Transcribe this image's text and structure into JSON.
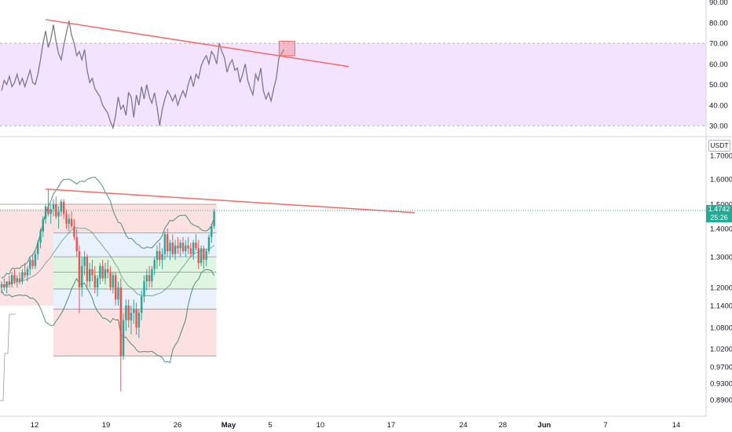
{
  "chart_data": [
    {
      "type": "line",
      "panel": "rsi",
      "ylim": [
        27,
        91
      ],
      "y_ticks": [
        "90.00",
        "80.00",
        "70.00",
        "60.00",
        "50.00",
        "40.00",
        "30.00"
      ],
      "y_tick_values": [
        90,
        80,
        70,
        60,
        50,
        40,
        30
      ],
      "band": {
        "upper": 70,
        "lower": 30
      },
      "values": [
        47,
        52,
        50,
        54,
        49,
        51,
        55,
        50,
        53,
        49,
        53,
        57,
        51,
        50,
        55,
        62,
        70,
        76,
        68,
        72,
        79,
        71,
        65,
        62,
        69,
        75,
        81,
        74,
        70,
        64,
        66,
        62,
        67,
        57,
        51,
        53,
        48,
        46,
        44,
        40,
        38,
        36,
        32,
        29,
        35,
        44,
        38,
        40,
        35,
        46,
        44,
        34,
        45,
        40,
        49,
        43,
        50,
        44,
        41,
        46,
        39,
        30,
        38,
        43,
        47,
        45,
        42,
        45,
        40,
        44,
        47,
        44,
        50,
        54,
        49,
        55,
        53,
        59,
        62,
        64,
        60,
        66,
        64,
        60,
        70,
        66,
        63,
        56,
        60,
        62,
        57,
        58,
        51,
        55,
        60,
        52,
        48,
        45,
        55,
        52,
        58,
        47,
        43,
        46,
        42,
        48,
        53,
        63,
        65,
        67
      ],
      "color_line": "#787b86",
      "color_band_fill": "#f3e3ff",
      "trendline": {
        "start": [
          17,
          81.5
        ],
        "end": [
          114,
          61
        ],
        "color": "#f26a68"
      },
      "highlight_box": {
        "x": 108,
        "y_low": 64,
        "y_high": 71
      }
    },
    {
      "type": "candlestick",
      "panel": "price",
      "quote_label": "USDT",
      "ylim": [
        0.877,
        1.8
      ],
      "y_ticks": [
        "1.7000",
        "1.6000",
        "1.5000",
        "1.4000",
        "1.3000",
        "1.2000",
        "1.1400",
        "1.0800",
        "1.0200",
        "0.9700",
        "0.9300",
        "0.8900"
      ],
      "y_tick_values": [
        1.7,
        1.6,
        1.5,
        1.4,
        1.3,
        1.2,
        1.14,
        1.08,
        1.02,
        0.97,
        0.93,
        0.89
      ],
      "x_ticks": [
        "12",
        "19",
        "26",
        "May",
        "5",
        "10",
        "17",
        "24",
        "28",
        "Jun",
        "7",
        "14"
      ],
      "last_price": "1.4742",
      "countdown": "25:26",
      "candles": [
        [
          1.2,
          1.22,
          1.18,
          1.21
        ],
        [
          1.21,
          1.23,
          1.19,
          1.2
        ],
        [
          1.2,
          1.22,
          1.18,
          1.22
        ],
        [
          1.22,
          1.24,
          1.2,
          1.21
        ],
        [
          1.21,
          1.25,
          1.2,
          1.24
        ],
        [
          1.24,
          1.26,
          1.21,
          1.22
        ],
        [
          1.22,
          1.24,
          1.2,
          1.23
        ],
        [
          1.23,
          1.25,
          1.21,
          1.22
        ],
        [
          1.22,
          1.26,
          1.21,
          1.25
        ],
        [
          1.25,
          1.28,
          1.23,
          1.24
        ],
        [
          1.24,
          1.27,
          1.22,
          1.26
        ],
        [
          1.26,
          1.3,
          1.24,
          1.29
        ],
        [
          1.29,
          1.31,
          1.26,
          1.27
        ],
        [
          1.27,
          1.32,
          1.26,
          1.31
        ],
        [
          1.31,
          1.36,
          1.29,
          1.35
        ],
        [
          1.35,
          1.4,
          1.33,
          1.39
        ],
        [
          1.39,
          1.45,
          1.37,
          1.44
        ],
        [
          1.44,
          1.5,
          1.42,
          1.49
        ],
        [
          1.49,
          1.56,
          1.45,
          1.46
        ],
        [
          1.46,
          1.5,
          1.42,
          1.48
        ],
        [
          1.48,
          1.52,
          1.45,
          1.5
        ],
        [
          1.5,
          1.53,
          1.44,
          1.45
        ],
        [
          1.45,
          1.49,
          1.4,
          1.47
        ],
        [
          1.47,
          1.52,
          1.45,
          1.51
        ],
        [
          1.51,
          1.52,
          1.44,
          1.46
        ],
        [
          1.46,
          1.48,
          1.4,
          1.42
        ],
        [
          1.42,
          1.46,
          1.39,
          1.44
        ],
        [
          1.44,
          1.47,
          1.4,
          1.41
        ],
        [
          1.41,
          1.44,
          1.36,
          1.37
        ],
        [
          1.37,
          1.4,
          1.3,
          1.32
        ],
        [
          1.32,
          1.34,
          1.12,
          1.2
        ],
        [
          1.2,
          1.3,
          1.17,
          1.27
        ],
        [
          1.27,
          1.32,
          1.24,
          1.3
        ],
        [
          1.3,
          1.31,
          1.2,
          1.22
        ],
        [
          1.22,
          1.28,
          1.2,
          1.26
        ],
        [
          1.26,
          1.29,
          1.22,
          1.24
        ],
        [
          1.24,
          1.27,
          1.18,
          1.2
        ],
        [
          1.2,
          1.24,
          1.17,
          1.23
        ],
        [
          1.23,
          1.28,
          1.21,
          1.27
        ],
        [
          1.27,
          1.29,
          1.22,
          1.23
        ],
        [
          1.23,
          1.28,
          1.21,
          1.26
        ],
        [
          1.26,
          1.29,
          1.23,
          1.25
        ],
        [
          1.25,
          1.27,
          1.19,
          1.2
        ],
        [
          1.2,
          1.25,
          1.18,
          1.24
        ],
        [
          1.24,
          1.25,
          1.14,
          1.16
        ],
        [
          1.16,
          1.22,
          1.14,
          1.2
        ],
        [
          1.2,
          1.23,
          0.91,
          1.0
        ],
        [
          1.0,
          1.12,
          0.99,
          1.1
        ],
        [
          1.1,
          1.16,
          1.07,
          1.14
        ],
        [
          1.14,
          1.16,
          1.08,
          1.1
        ],
        [
          1.1,
          1.14,
          1.06,
          1.12
        ],
        [
          1.12,
          1.16,
          1.09,
          1.13
        ],
        [
          1.13,
          1.15,
          1.06,
          1.08
        ],
        [
          1.08,
          1.13,
          1.05,
          1.12
        ],
        [
          1.12,
          1.19,
          1.1,
          1.17
        ],
        [
          1.17,
          1.24,
          1.15,
          1.22
        ],
        [
          1.22,
          1.26,
          1.19,
          1.24
        ],
        [
          1.24,
          1.27,
          1.2,
          1.22
        ],
        [
          1.22,
          1.27,
          1.2,
          1.26
        ],
        [
          1.26,
          1.3,
          1.24,
          1.29
        ],
        [
          1.29,
          1.34,
          1.26,
          1.32
        ],
        [
          1.32,
          1.35,
          1.27,
          1.29
        ],
        [
          1.29,
          1.33,
          1.26,
          1.31
        ],
        [
          1.31,
          1.39,
          1.29,
          1.38
        ],
        [
          1.38,
          1.4,
          1.3,
          1.32
        ],
        [
          1.32,
          1.36,
          1.29,
          1.35
        ],
        [
          1.35,
          1.38,
          1.3,
          1.31
        ],
        [
          1.31,
          1.36,
          1.29,
          1.34
        ],
        [
          1.34,
          1.37,
          1.31,
          1.33
        ],
        [
          1.33,
          1.36,
          1.3,
          1.35
        ],
        [
          1.35,
          1.37,
          1.31,
          1.32
        ],
        [
          1.32,
          1.36,
          1.3,
          1.34
        ],
        [
          1.34,
          1.37,
          1.31,
          1.33
        ],
        [
          1.33,
          1.35,
          1.3,
          1.31
        ],
        [
          1.31,
          1.36,
          1.29,
          1.35
        ],
        [
          1.35,
          1.38,
          1.32,
          1.33
        ],
        [
          1.33,
          1.36,
          1.26,
          1.28
        ],
        [
          1.28,
          1.34,
          1.27,
          1.33
        ],
        [
          1.33,
          1.34,
          1.26,
          1.29
        ],
        [
          1.29,
          1.33,
          1.27,
          1.32
        ],
        [
          1.32,
          1.38,
          1.31,
          1.37
        ],
        [
          1.37,
          1.42,
          1.35,
          1.41
        ],
        [
          1.41,
          1.48,
          1.4,
          1.47
        ]
      ],
      "candle_colors": {
        "up": "#26a69a",
        "down": "#ef5350"
      },
      "trendline": {
        "start": [
          17,
          1.56
        ],
        "end": [
          117,
          1.475
        ],
        "color": "#f26a68"
      },
      "rect_high": 1.5,
      "rect_low": 1.0,
      "levels": [
        1.5,
        1.385,
        1.3,
        1.25,
        1.195,
        1.13,
        1.0
      ],
      "zone_colors": [
        "#fbdada",
        "#e3eefb",
        "#d7f2d9",
        "#d7f2d9",
        "#e3eefb",
        "#fbdada"
      ]
    }
  ]
}
